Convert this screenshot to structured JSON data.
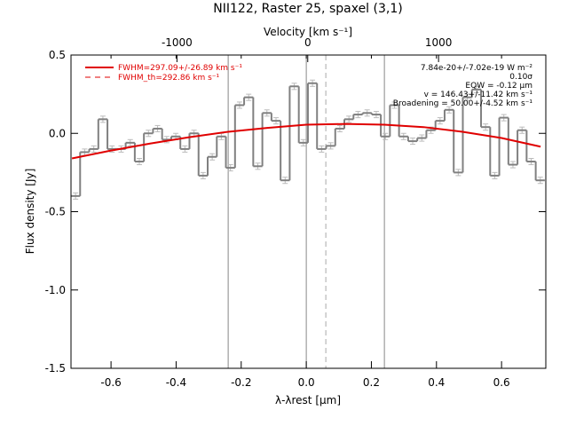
{
  "chart_data": {
    "type": "step",
    "title": "NII122, Raster 25, spaxel (3,1)",
    "xlabel": "λ-λrest [μm]",
    "ylabel": "Flux density [Jy]",
    "x2label": "Velocity [km s⁻¹]",
    "xlim": [
      -0.723,
      0.736
    ],
    "ylim": [
      -1.5,
      0.5
    ],
    "x2lim": [
      -1810,
      1820
    ],
    "xticks": [
      -0.6,
      -0.4,
      -0.2,
      {
        "value": 0,
        "label": "0.0"
      },
      0.2,
      0.4,
      0.6
    ],
    "yticks": [
      0.5,
      {
        "value": 0,
        "label": "0.0"
      },
      -0.5,
      {
        "value": -1,
        "label": "-1.0"
      },
      -1.5
    ],
    "x2ticks": [
      -1000,
      0,
      1000
    ],
    "bin_width": 0.028,
    "x": [
      -0.709,
      -0.681,
      -0.653,
      -0.625,
      -0.597,
      -0.569,
      -0.541,
      -0.513,
      -0.485,
      -0.457,
      -0.429,
      -0.401,
      -0.373,
      -0.345,
      -0.317,
      -0.289,
      -0.261,
      -0.233,
      -0.205,
      -0.177,
      -0.149,
      -0.121,
      -0.093,
      -0.065,
      -0.037,
      -0.009,
      0.019,
      0.047,
      0.075,
      0.103,
      0.131,
      0.159,
      0.187,
      0.215,
      0.243,
      0.271,
      0.299,
      0.327,
      0.355,
      0.383,
      0.411,
      0.439,
      0.467,
      0.495,
      0.523,
      0.551,
      0.579,
      0.607,
      0.635,
      0.663,
      0.691,
      0.719
    ],
    "values": [
      -0.4,
      -0.12,
      -0.1,
      0.09,
      -0.1,
      -0.1,
      -0.06,
      -0.18,
      0.0,
      0.03,
      -0.04,
      -0.02,
      -0.1,
      0.0,
      -0.27,
      -0.15,
      -0.02,
      -0.22,
      0.18,
      0.23,
      -0.21,
      0.13,
      0.08,
      -0.3,
      0.3,
      -0.06,
      0.32,
      -0.1,
      -0.08,
      0.03,
      0.09,
      0.12,
      0.13,
      0.12,
      -0.02,
      0.18,
      -0.02,
      -0.05,
      -0.03,
      0.02,
      0.08,
      0.15,
      -0.25,
      0.23,
      0.28,
      0.04,
      -0.27,
      0.1,
      -0.2,
      0.02,
      -0.18,
      -0.3
    ],
    "errors": [
      0.02,
      0.02,
      0.02,
      0.02,
      0.02,
      0.02,
      0.02,
      0.02,
      0.02,
      0.02,
      0.02,
      0.02,
      0.02,
      0.02,
      0.02,
      0.02,
      0.02,
      0.02,
      0.02,
      0.02,
      0.02,
      0.02,
      0.02,
      0.02,
      0.02,
      0.02,
      0.02,
      0.02,
      0.02,
      0.02,
      0.02,
      0.02,
      0.02,
      0.02,
      0.02,
      0.02,
      0.02,
      0.02,
      0.02,
      0.02,
      0.02,
      0.02,
      0.02,
      0.02,
      0.02,
      0.02,
      0.02,
      0.02,
      0.02,
      0.02,
      0.02,
      0.02
    ],
    "color": "#808080",
    "fit": {
      "name": "FWHM=297.09+/-26.89 km s⁻¹",
      "color": "#e00000",
      "x": [
        -0.72,
        -0.6,
        -0.48,
        -0.36,
        -0.24,
        -0.12,
        0,
        0.12,
        0.24,
        0.36,
        0.48,
        0.6,
        0.72
      ],
      "values": [
        -0.16,
        -0.11,
        -0.065,
        -0.025,
        0.01,
        0.035,
        0.055,
        0.06,
        0.055,
        0.04,
        0.01,
        -0.03,
        -0.085
      ]
    },
    "fit_th": {
      "name": "FWHM_th=292.86 km s⁻¹",
      "color": "#e00000"
    },
    "vlines": [
      -0.24,
      0,
      0.24
    ],
    "dashed_vline": 0.06,
    "annotations": [
      "7.84e-20+/-7.02e-19 W m⁻²",
      "0.10σ",
      "EQW = -0.12 μm",
      "v = 146.43+/-11.42 km s⁻¹",
      "Broadening = 50.00+/-4.52 km s⁻¹"
    ]
  }
}
